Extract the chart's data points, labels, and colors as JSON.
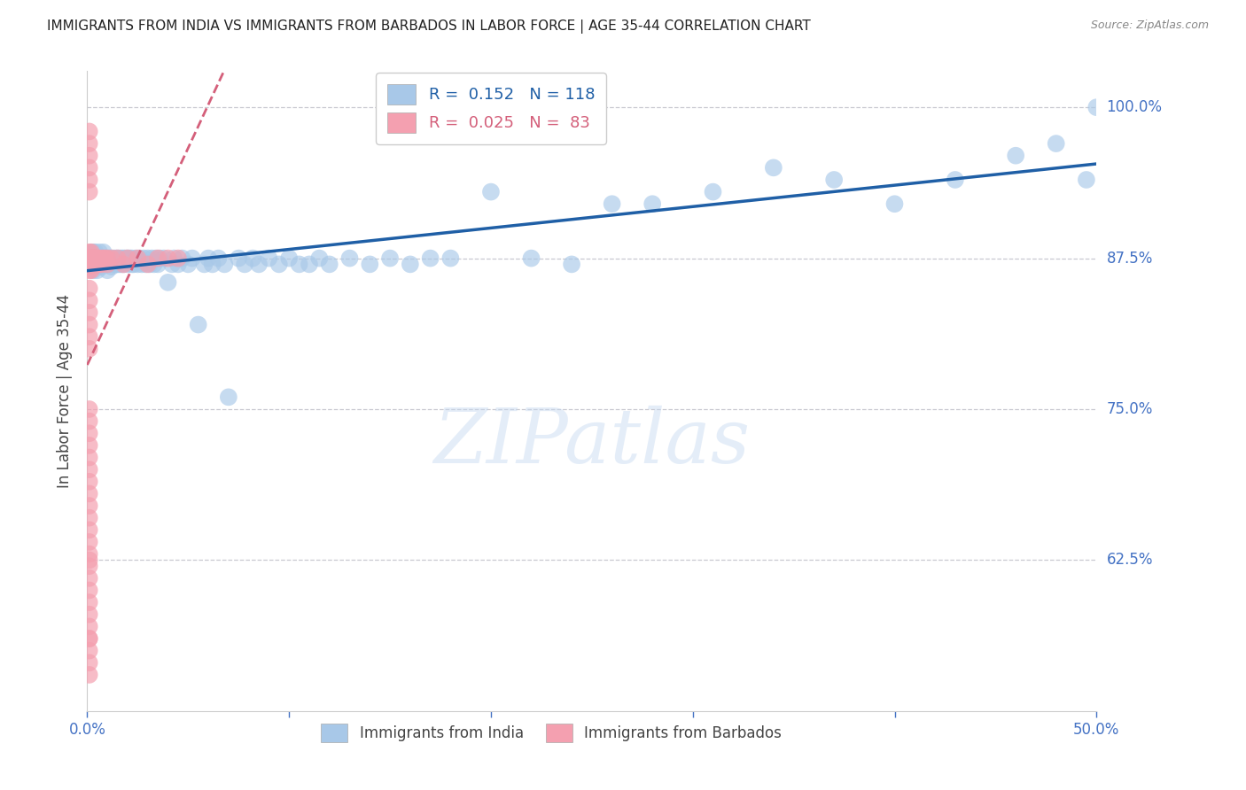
{
  "title": "IMMIGRANTS FROM INDIA VS IMMIGRANTS FROM BARBADOS IN LABOR FORCE | AGE 35-44 CORRELATION CHART",
  "source": "Source: ZipAtlas.com",
  "ylabel": "In Labor Force | Age 35-44",
  "ytick_labels": [
    "100.0%",
    "87.5%",
    "75.0%",
    "62.5%"
  ],
  "ytick_values": [
    1.0,
    0.875,
    0.75,
    0.625
  ],
  "xlim": [
    0.0,
    0.5
  ],
  "ylim": [
    0.5,
    1.03
  ],
  "india_R": 0.152,
  "india_N": 118,
  "barbados_R": 0.025,
  "barbados_N": 83,
  "india_color": "#a8c8e8",
  "barbados_color": "#f4a0b0",
  "india_line_color": "#1f5fa6",
  "barbados_line_color": "#d45f7a",
  "background_color": "#ffffff",
  "grid_color": "#c8c8d0",
  "title_color": "#333333",
  "axis_color": "#4472c4",
  "india_scatter_x": [
    0.001,
    0.002,
    0.002,
    0.003,
    0.003,
    0.003,
    0.004,
    0.004,
    0.004,
    0.005,
    0.005,
    0.005,
    0.006,
    0.006,
    0.006,
    0.007,
    0.007,
    0.007,
    0.008,
    0.008,
    0.008,
    0.009,
    0.009,
    0.01,
    0.01,
    0.01,
    0.011,
    0.011,
    0.012,
    0.012,
    0.013,
    0.013,
    0.014,
    0.014,
    0.015,
    0.015,
    0.016,
    0.016,
    0.017,
    0.017,
    0.018,
    0.018,
    0.019,
    0.02,
    0.02,
    0.021,
    0.022,
    0.022,
    0.023,
    0.024,
    0.025,
    0.026,
    0.027,
    0.028,
    0.029,
    0.03,
    0.031,
    0.032,
    0.033,
    0.034,
    0.035,
    0.036,
    0.038,
    0.04,
    0.042,
    0.043,
    0.045,
    0.047,
    0.05,
    0.052,
    0.055,
    0.058,
    0.06,
    0.062,
    0.065,
    0.068,
    0.07,
    0.075,
    0.078,
    0.082,
    0.085,
    0.09,
    0.095,
    0.1,
    0.105,
    0.11,
    0.115,
    0.12,
    0.13,
    0.14,
    0.15,
    0.16,
    0.17,
    0.18,
    0.2,
    0.22,
    0.24,
    0.26,
    0.28,
    0.31,
    0.34,
    0.37,
    0.4,
    0.43,
    0.46,
    0.48,
    0.495,
    0.5
  ],
  "india_scatter_y": [
    0.875,
    0.88,
    0.87,
    0.875,
    0.865,
    0.88,
    0.875,
    0.87,
    0.88,
    0.875,
    0.87,
    0.865,
    0.875,
    0.88,
    0.87,
    0.875,
    0.868,
    0.875,
    0.875,
    0.87,
    0.88,
    0.875,
    0.87,
    0.875,
    0.87,
    0.865,
    0.875,
    0.87,
    0.875,
    0.868,
    0.875,
    0.87,
    0.875,
    0.87,
    0.875,
    0.87,
    0.875,
    0.87,
    0.875,
    0.87,
    0.875,
    0.87,
    0.875,
    0.87,
    0.875,
    0.875,
    0.87,
    0.875,
    0.87,
    0.875,
    0.87,
    0.875,
    0.87,
    0.875,
    0.87,
    0.875,
    0.87,
    0.875,
    0.87,
    0.875,
    0.87,
    0.875,
    0.875,
    0.855,
    0.87,
    0.875,
    0.87,
    0.875,
    0.87,
    0.875,
    0.82,
    0.87,
    0.875,
    0.87,
    0.875,
    0.87,
    0.76,
    0.875,
    0.87,
    0.875,
    0.87,
    0.875,
    0.87,
    0.875,
    0.87,
    0.87,
    0.875,
    0.87,
    0.875,
    0.87,
    0.875,
    0.87,
    0.875,
    0.875,
    0.93,
    0.875,
    0.87,
    0.92,
    0.92,
    0.93,
    0.95,
    0.94,
    0.92,
    0.94,
    0.96,
    0.97,
    0.94,
    1.0
  ],
  "barbados_scatter_x": [
    0.001,
    0.001,
    0.001,
    0.001,
    0.001,
    0.001,
    0.001,
    0.001,
    0.001,
    0.001,
    0.001,
    0.001,
    0.001,
    0.001,
    0.001,
    0.001,
    0.001,
    0.001,
    0.001,
    0.001,
    0.001,
    0.001,
    0.002,
    0.002,
    0.002,
    0.002,
    0.002,
    0.002,
    0.002,
    0.002,
    0.002,
    0.003,
    0.003,
    0.003,
    0.003,
    0.003,
    0.004,
    0.004,
    0.004,
    0.005,
    0.005,
    0.006,
    0.006,
    0.007,
    0.007,
    0.008,
    0.009,
    0.01,
    0.01,
    0.012,
    0.015,
    0.018,
    0.02,
    0.025,
    0.03,
    0.035,
    0.04,
    0.045,
    0.001,
    0.001,
    0.001,
    0.001,
    0.001,
    0.001,
    0.001,
    0.001,
    0.001,
    0.001,
    0.001,
    0.001,
    0.001,
    0.001,
    0.001,
    0.001,
    0.001,
    0.001,
    0.001,
    0.001,
    0.001,
    0.001,
    0.001,
    0.001,
    0.001
  ],
  "barbados_scatter_y": [
    0.875,
    0.875,
    0.88,
    0.87,
    0.875,
    0.865,
    0.87,
    0.875,
    0.868,
    0.875,
    0.94,
    0.93,
    0.95,
    0.96,
    0.97,
    0.98,
    0.85,
    0.84,
    0.83,
    0.82,
    0.81,
    0.8,
    0.875,
    0.87,
    0.865,
    0.875,
    0.87,
    0.88,
    0.875,
    0.87,
    0.875,
    0.875,
    0.87,
    0.875,
    0.87,
    0.875,
    0.875,
    0.87,
    0.875,
    0.875,
    0.87,
    0.875,
    0.87,
    0.875,
    0.87,
    0.875,
    0.875,
    0.875,
    0.87,
    0.875,
    0.875,
    0.87,
    0.875,
    0.875,
    0.87,
    0.875,
    0.875,
    0.875,
    0.75,
    0.74,
    0.73,
    0.72,
    0.71,
    0.7,
    0.69,
    0.68,
    0.67,
    0.66,
    0.65,
    0.64,
    0.63,
    0.62,
    0.61,
    0.6,
    0.59,
    0.58,
    0.57,
    0.56,
    0.55,
    0.54,
    0.53,
    0.625,
    0.56
  ]
}
